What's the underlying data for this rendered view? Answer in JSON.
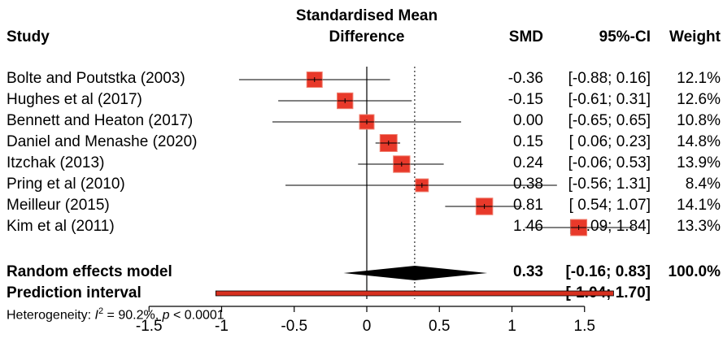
{
  "headers": {
    "study": "Study",
    "effect_line1": "Standardised Mean",
    "effect_line2": "Difference",
    "smd": "SMD",
    "ci": "95%-CI",
    "weight": "Weight"
  },
  "chart_data": {
    "type": "forest",
    "xlim": [
      -1.5,
      1.5
    ],
    "ticks": [
      -1.5,
      -1,
      -0.5,
      0,
      0.5,
      1,
      1.5
    ],
    "tick_labels": [
      "-1.5",
      "-1",
      "-0.5",
      "0",
      "0.5",
      "1",
      "1.5"
    ],
    "null_line": 0,
    "studies": [
      {
        "name": "Bolte and Poutstka (2003)",
        "smd": -0.36,
        "lower": -0.88,
        "upper": 0.16,
        "weight": 12.1,
        "smd_text": "-0.36",
        "ci_text": "[-0.88; 0.16]",
        "weight_text": "12.1%"
      },
      {
        "name": "Hughes et al (2017)",
        "smd": -0.15,
        "lower": -0.61,
        "upper": 0.31,
        "weight": 12.6,
        "smd_text": "-0.15",
        "ci_text": "[-0.61; 0.31]",
        "weight_text": "12.6%"
      },
      {
        "name": "Bennett and Heaton (2017)",
        "smd": 0.0,
        "lower": -0.65,
        "upper": 0.65,
        "weight": 10.8,
        "smd_text": "0.00",
        "ci_text": "[-0.65; 0.65]",
        "weight_text": "10.8%"
      },
      {
        "name": "Daniel and Menashe (2020)",
        "smd": 0.15,
        "lower": 0.06,
        "upper": 0.23,
        "weight": 14.8,
        "smd_text": "0.15",
        "ci_text": "[ 0.06; 0.23]",
        "weight_text": "14.8%"
      },
      {
        "name": "Itzchak (2013)",
        "smd": 0.24,
        "lower": -0.06,
        "upper": 0.53,
        "weight": 13.9,
        "smd_text": "0.24",
        "ci_text": "[-0.06; 0.53]",
        "weight_text": "13.9%"
      },
      {
        "name": "Pring et al (2010)",
        "smd": 0.38,
        "lower": -0.56,
        "upper": 1.31,
        "weight": 8.4,
        "smd_text": "0.38",
        "ci_text": "[-0.56; 1.31]",
        "weight_text": "8.4%"
      },
      {
        "name": "Meilleur (2015)",
        "smd": 0.81,
        "lower": 0.54,
        "upper": 1.07,
        "weight": 14.1,
        "smd_text": "0.81",
        "ci_text": "[ 0.54; 1.07]",
        "weight_text": "14.1%"
      },
      {
        "name": "Kim et al (2011)",
        "smd": 1.46,
        "lower": 1.09,
        "upper": 1.84,
        "weight": 13.3,
        "smd_text": "1.46",
        "ci_text": "[ 1.09; 1.84]",
        "weight_text": "13.3%"
      }
    ],
    "random_effects": {
      "label": "Random effects model",
      "smd": 0.33,
      "lower": -0.16,
      "upper": 0.83,
      "smd_text": "0.33",
      "ci_text": "[-0.16; 0.83]",
      "weight_text": "100.0%"
    },
    "prediction_interval": {
      "label": "Prediction interval",
      "lower": -1.04,
      "upper": 1.7,
      "ci_text": "[-1.04; 1.70]"
    },
    "heterogeneity": {
      "prefix": "Heterogeneity: ",
      "i2_symbol": "I",
      "i2_sup": "2",
      "i2_value": " = 90.2%, ",
      "p_symbol": "p",
      "p_value": " < 0.0001"
    },
    "colors": {
      "box": "#e8392a",
      "box_edge": "#f08070",
      "diamond": "#000000",
      "pi_fill": "#d7301f"
    }
  }
}
